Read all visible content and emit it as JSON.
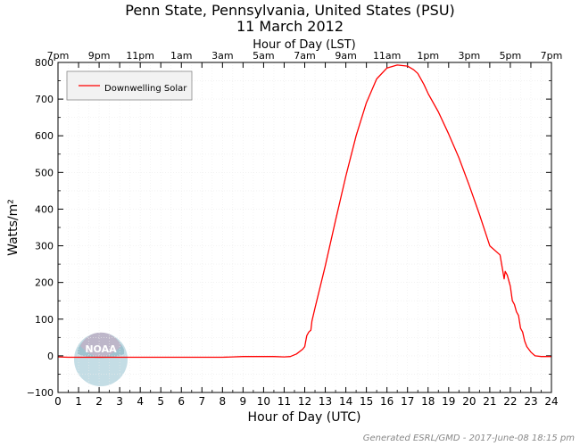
{
  "chart_data": {
    "type": "line",
    "title": "Penn State, Pennsylvania, United States (PSU)",
    "subtitle": "11 March 2012",
    "top_axis_label": "Hour of Day (LST)",
    "top_tick_labels": [
      "7pm",
      "9pm",
      "11pm",
      "1am",
      "3am",
      "5am",
      "7am",
      "9am",
      "11am",
      "1pm",
      "3pm",
      "5pm",
      "7pm"
    ],
    "xlabel": "Hour of Day (UTC)",
    "ylabel": "Watts/m²",
    "xlim": [
      0,
      24
    ],
    "ylim": [
      -100,
      800
    ],
    "xticks": [
      0,
      1,
      2,
      3,
      4,
      5,
      6,
      7,
      8,
      9,
      10,
      11,
      12,
      13,
      14,
      15,
      16,
      17,
      18,
      19,
      20,
      21,
      22,
      23,
      24
    ],
    "yticks": [
      -100,
      0,
      100,
      200,
      300,
      400,
      500,
      600,
      700,
      800
    ],
    "grid": true,
    "legend_position": "top-left",
    "series": [
      {
        "name": "Downwelling Solar",
        "color": "#ff0000",
        "x": [
          0,
          0.5,
          1,
          2,
          3,
          4,
          5,
          6,
          7,
          8,
          8.5,
          9,
          9.5,
          10,
          10.5,
          11,
          11.3,
          11.6,
          11.9,
          12.0,
          12.1,
          12.2,
          12.3,
          12.35,
          12.5,
          13,
          13.5,
          14,
          14.5,
          15,
          15.5,
          16,
          16.5,
          17,
          17.3,
          17.5,
          17.8,
          18,
          18.5,
          19,
          19.5,
          20,
          20.5,
          21,
          21.5,
          21.7,
          21.75,
          21.85,
          22.0,
          22.1,
          22.2,
          22.3,
          22.4,
          22.5,
          22.6,
          22.7,
          22.8,
          23,
          23.2,
          23.5,
          24
        ],
        "y": [
          -3,
          -4,
          -4,
          -4,
          -4,
          -4,
          -4,
          -4,
          -4,
          -4,
          -3,
          -2,
          -2,
          -2,
          -2,
          -3,
          -2,
          5,
          18,
          25,
          55,
          65,
          70,
          95,
          130,
          245,
          370,
          490,
          600,
          690,
          755,
          785,
          793,
          790,
          780,
          770,
          740,
          715,
          665,
          605,
          540,
          465,
          385,
          300,
          275,
          210,
          230,
          220,
          190,
          150,
          140,
          120,
          110,
          75,
          65,
          40,
          25,
          10,
          0,
          -2,
          -2
        ]
      }
    ]
  },
  "credit": "Generated ESRL/GMD - 2017-June-08 18:15 pm",
  "logo_text": "NOAA"
}
